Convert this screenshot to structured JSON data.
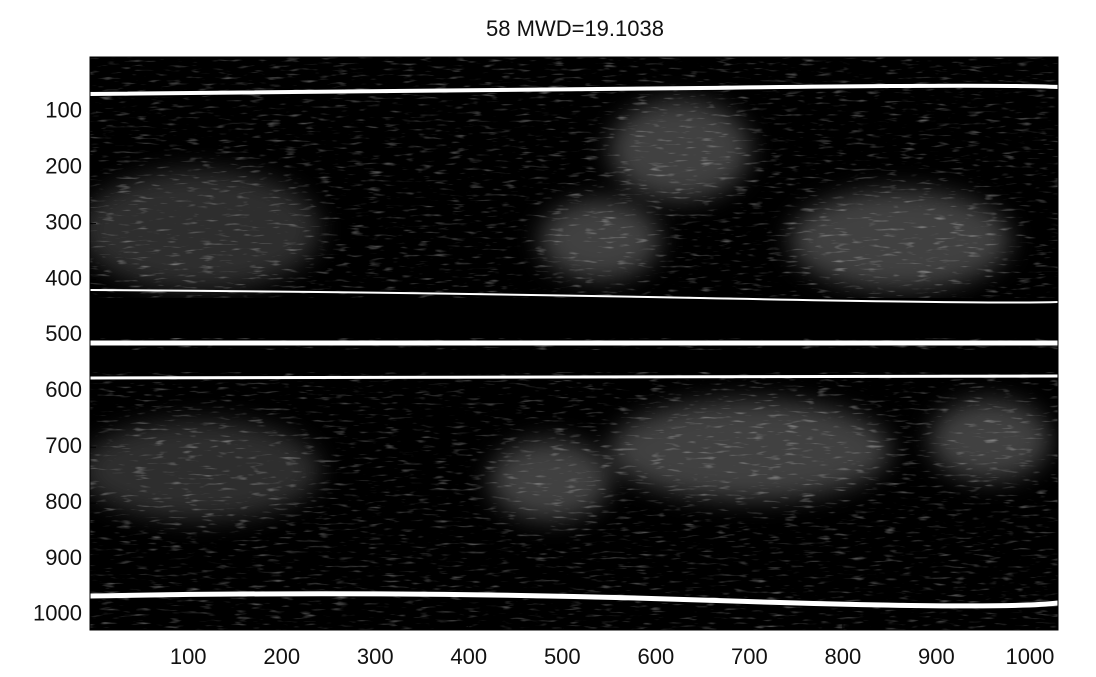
{
  "chart_data": {
    "type": "image",
    "title": "58  MWD=19.1038",
    "xlim": [
      -5,
      1030
    ],
    "xticks": [
      100,
      200,
      300,
      400,
      500,
      600,
      700,
      800,
      900,
      1000
    ],
    "ylim": [
      2,
      1027
    ],
    "yticks": [
      100,
      200,
      300,
      400,
      500,
      600,
      700,
      800,
      900,
      1000
    ],
    "y_reversed": true,
    "colormap": "gray"
  }
}
